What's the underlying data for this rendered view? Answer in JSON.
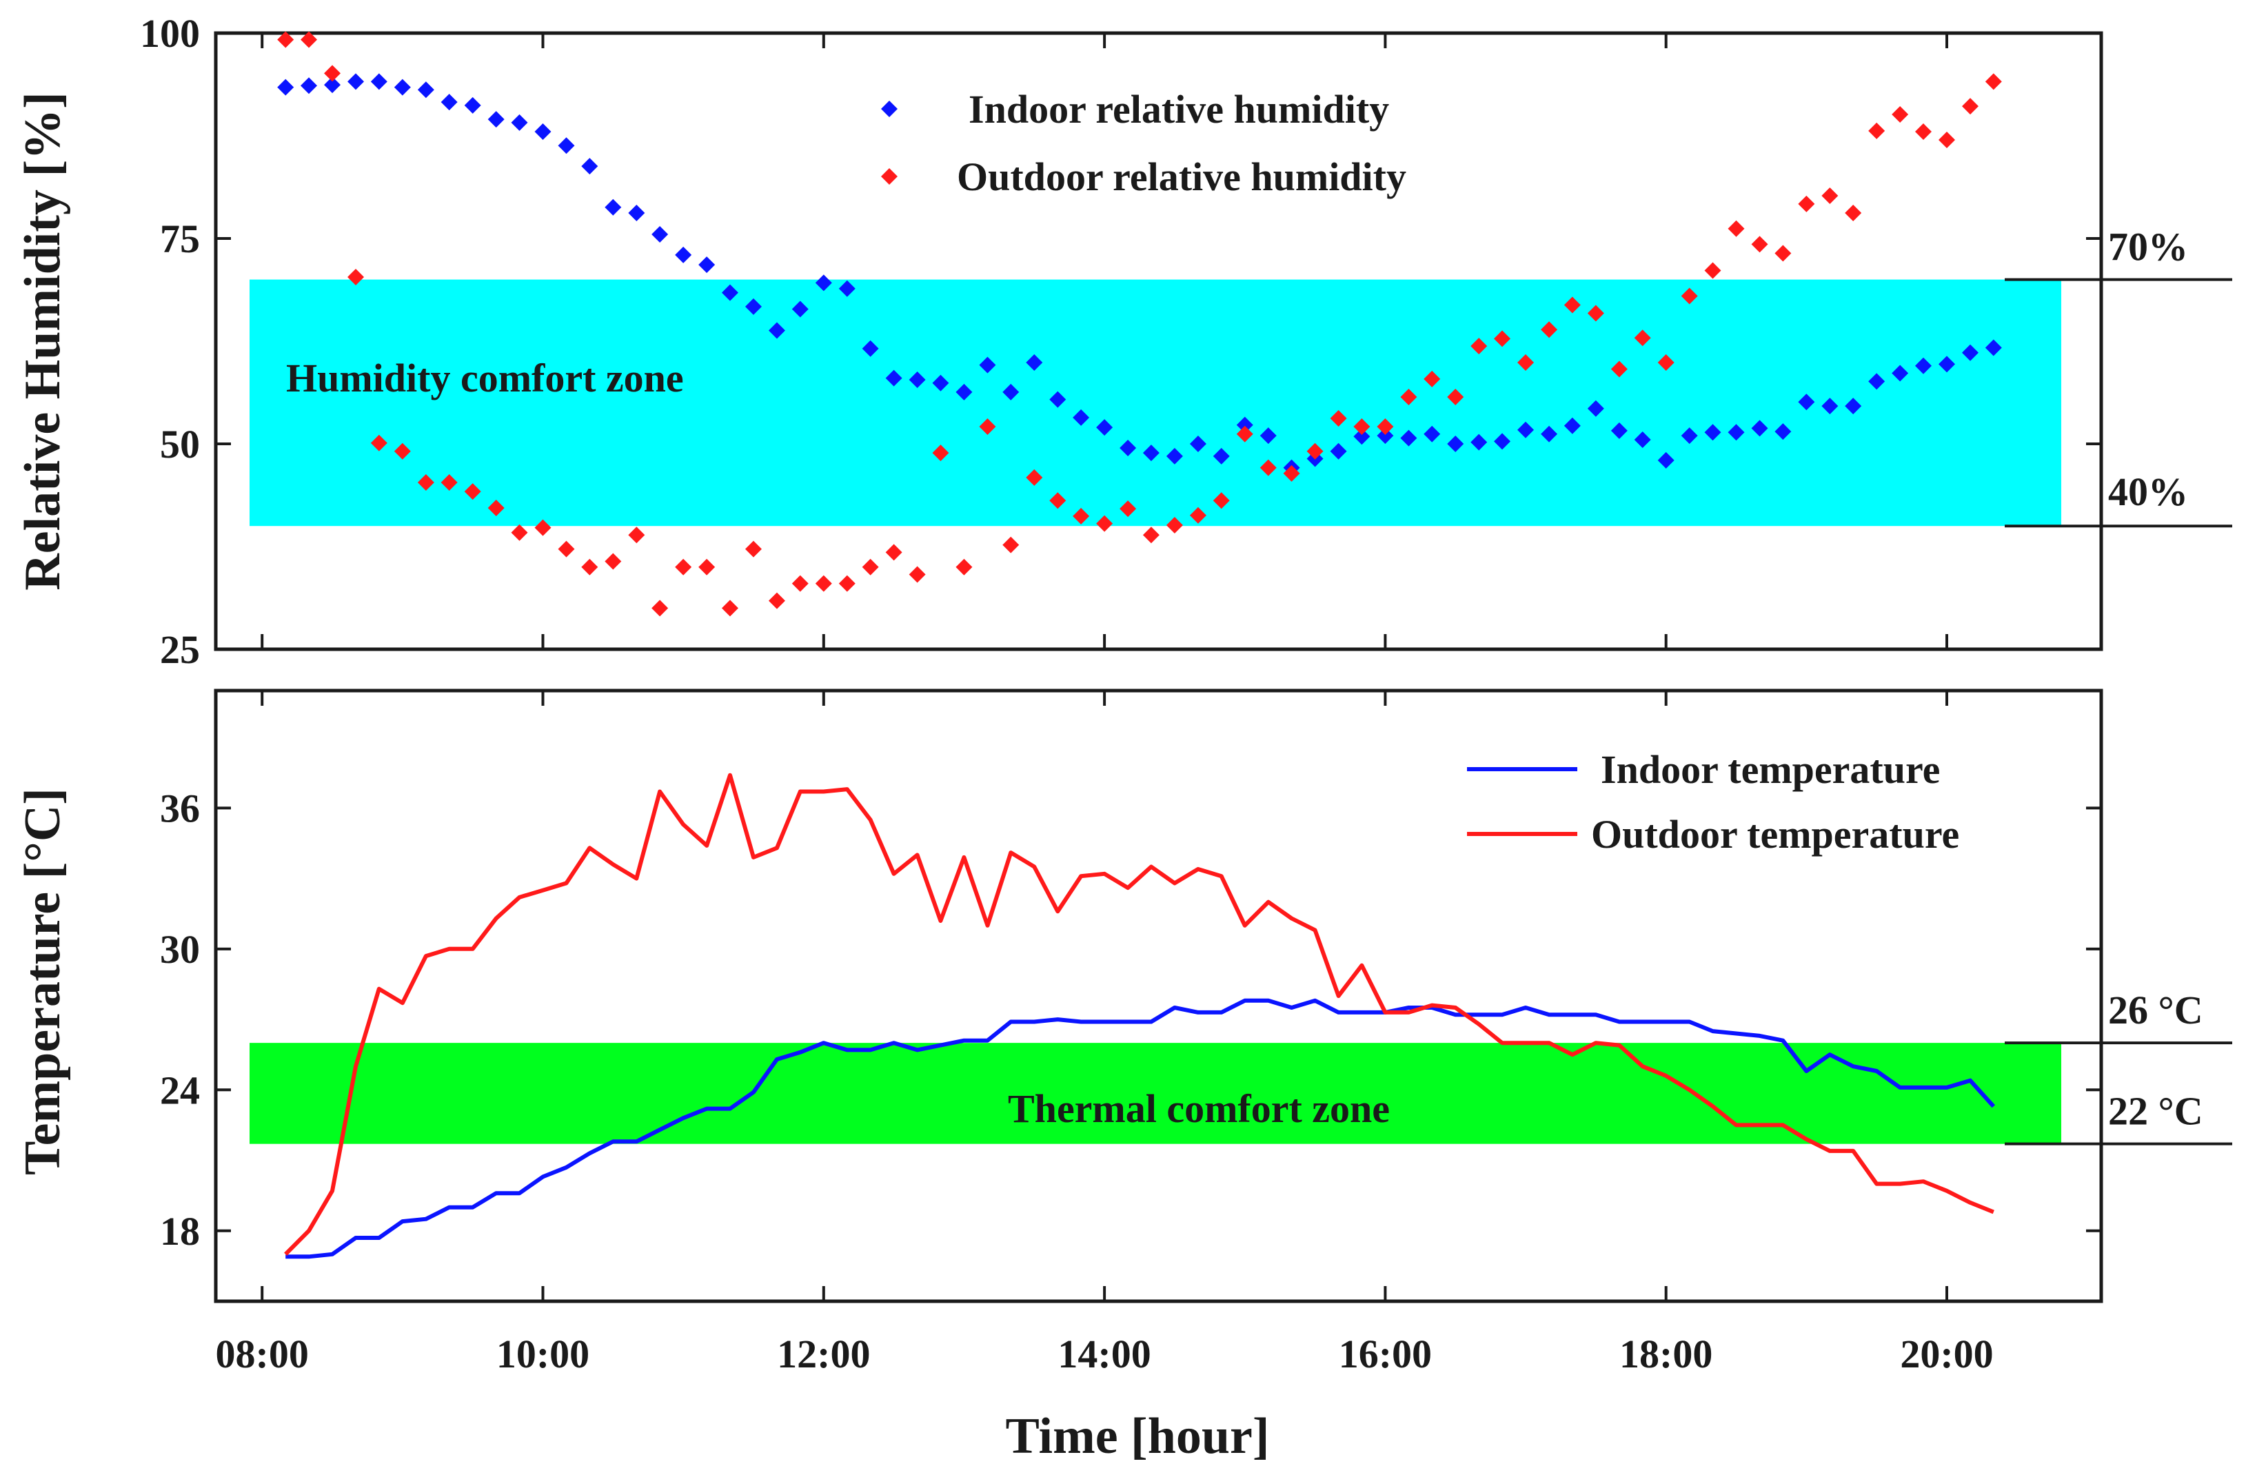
{
  "xlabel": "Time [hour]",
  "x_ticks": [
    "08:00",
    "10:00",
    "12:00",
    "14:00",
    "16:00",
    "18:00",
    "20:00"
  ],
  "colors": {
    "indoor": "#0a14ff",
    "outdoor": "#ff1a1a",
    "humidity_zone": "#00ffff",
    "thermal_zone": "#00ff1e",
    "axis": "#1a1a1a"
  },
  "chart_data": [
    {
      "type": "scatter",
      "ylabel": "Relative Humidity [%]",
      "xlim": [
        7.67,
        21.1
      ],
      "ylim": [
        25,
        100
      ],
      "y_ticks": [
        100,
        75,
        50,
        25
      ],
      "comfort_zone": {
        "label": "Humidity comfort zone",
        "lower": 40,
        "upper": 70,
        "lower_marker": "40%",
        "upper_marker": "70%"
      },
      "series": [
        {
          "name": "Indoor relative humidity",
          "x": [
            8.167,
            8.333,
            8.5,
            8.667,
            8.833,
            9.0,
            9.167,
            9.333,
            9.5,
            9.667,
            9.833,
            10.0,
            10.167,
            10.333,
            10.5,
            10.667,
            10.833,
            11.0,
            11.167,
            11.333,
            11.5,
            11.667,
            11.833,
            12.0,
            12.167,
            12.333,
            12.5,
            12.667,
            12.833,
            13.0,
            13.167,
            13.333,
            13.5,
            13.667,
            13.833,
            14.0,
            14.167,
            14.333,
            14.5,
            14.667,
            14.833,
            15.0,
            15.167,
            15.333,
            15.5,
            15.667,
            15.833,
            16.0,
            16.167,
            16.333,
            16.5,
            16.667,
            16.833,
            17.0,
            17.167,
            17.333,
            17.5,
            17.667,
            17.833,
            18.0,
            18.167,
            18.333,
            18.5,
            18.667,
            18.833,
            19.0,
            19.167,
            19.333,
            19.5,
            19.667,
            19.833,
            20.0,
            20.167,
            20.333
          ],
          "values": [
            93.4,
            93.6,
            93.7,
            94.1,
            94.1,
            93.4,
            93.1,
            91.6,
            91.2,
            89.5,
            89.1,
            88.0,
            86.3,
            83.8,
            78.8,
            78.1,
            75.5,
            73.0,
            71.8,
            68.4,
            66.7,
            63.8,
            66.4,
            69.6,
            68.9,
            61.6,
            58.0,
            57.8,
            57.4,
            56.3,
            59.6,
            56.3,
            59.9,
            55.4,
            53.2,
            52.0,
            49.5,
            48.9,
            48.5,
            50.0,
            48.5,
            52.3,
            51.0,
            47.1,
            48.2,
            49.1,
            50.9,
            51.0,
            50.7,
            51.2,
            50.0,
            50.2,
            50.3,
            51.7,
            51.2,
            52.2,
            54.3,
            51.6,
            50.5,
            48.0,
            51.0,
            51.4,
            51.4,
            51.9,
            51.5,
            55.1,
            54.6,
            54.6,
            57.6,
            58.6,
            59.5,
            59.7,
            61.1,
            61.7
          ]
        },
        {
          "name": "Outdoor relative humidity",
          "x": [
            8.167,
            8.333,
            8.5,
            8.667,
            8.833,
            9.0,
            9.167,
            9.333,
            9.5,
            9.667,
            9.833,
            10.0,
            10.167,
            10.333,
            10.5,
            10.667,
            10.833,
            11.0,
            11.167,
            11.333,
            11.5,
            11.667,
            11.833,
            12.0,
            12.167,
            12.333,
            12.5,
            12.667,
            12.833,
            13.0,
            13.167,
            13.333,
            13.5,
            13.667,
            13.833,
            14.0,
            14.167,
            14.333,
            14.5,
            14.667,
            14.833,
            15.0,
            15.167,
            15.333,
            15.5,
            15.667,
            15.833,
            16.0,
            16.167,
            16.333,
            16.5,
            16.667,
            16.833,
            17.0,
            17.167,
            17.333,
            17.5,
            17.667,
            17.833,
            18.0,
            18.167,
            18.333,
            18.5,
            18.667,
            18.833,
            19.0,
            19.167,
            19.333,
            19.5,
            19.667,
            19.833,
            20.0,
            20.167,
            20.333
          ],
          "values": [
            99.2,
            99.2,
            95.1,
            70.3,
            50.1,
            49.1,
            45.3,
            45.3,
            44.2,
            42.2,
            39.2,
            39.8,
            37.2,
            35.0,
            35.7,
            38.9,
            30.0,
            35.0,
            35.0,
            30.0,
            37.2,
            30.9,
            33.0,
            33.0,
            33.0,
            35.0,
            36.8,
            34.1,
            48.9,
            35.0,
            52.1,
            37.7,
            45.9,
            43.1,
            41.2,
            40.3,
            42.1,
            38.9,
            40.1,
            41.3,
            43.1,
            51.2,
            47.1,
            46.4,
            49.1,
            53.1,
            52.1,
            52.1,
            55.7,
            57.9,
            55.7,
            61.9,
            62.8,
            59.9,
            63.9,
            66.9,
            65.9,
            59.1,
            62.9,
            59.9,
            68.0,
            71.1,
            76.2,
            74.3,
            73.2,
            79.2,
            80.2,
            78.1,
            88.1,
            90.1,
            88.0,
            87.0,
            91.1,
            94.1
          ]
        }
      ]
    },
    {
      "type": "line",
      "ylabel": "Temperature [°C]",
      "xlim": [
        7.67,
        21.1
      ],
      "ylim": [
        15,
        41
      ],
      "y_ticks": [
        36,
        30,
        24,
        18
      ],
      "comfort_zone": {
        "label": "Thermal comfort zone",
        "lower": 21.7,
        "upper": 26.0,
        "lower_marker": "22 °C",
        "upper_marker": "26 °C"
      },
      "series": [
        {
          "name": "Indoor temperature",
          "x": [
            8.167,
            8.333,
            8.5,
            8.667,
            8.833,
            9.0,
            9.167,
            9.333,
            9.5,
            9.667,
            9.833,
            10.0,
            10.167,
            10.333,
            10.5,
            10.667,
            10.833,
            11.0,
            11.167,
            11.333,
            11.5,
            11.667,
            11.833,
            12.0,
            12.167,
            12.333,
            12.5,
            12.667,
            12.833,
            13.0,
            13.167,
            13.333,
            13.5,
            13.667,
            13.833,
            14.0,
            14.167,
            14.333,
            14.5,
            14.667,
            14.833,
            15.0,
            15.167,
            15.333,
            15.5,
            15.667,
            15.833,
            16.0,
            16.167,
            16.333,
            16.5,
            16.667,
            16.833,
            17.0,
            17.167,
            17.333,
            17.5,
            17.667,
            17.833,
            18.0,
            18.167,
            18.333,
            18.5,
            18.667,
            18.833,
            19.0,
            19.167,
            19.333,
            19.5,
            19.667,
            19.833,
            20.0,
            20.167,
            20.333
          ],
          "values": [
            16.9,
            16.9,
            17.0,
            17.7,
            17.7,
            18.4,
            18.5,
            19.0,
            19.0,
            19.6,
            19.6,
            20.3,
            20.7,
            21.3,
            21.8,
            21.8,
            22.3,
            22.8,
            23.2,
            23.2,
            23.9,
            25.3,
            25.6,
            26.0,
            25.7,
            25.7,
            26.0,
            25.7,
            25.9,
            26.1,
            26.1,
            26.9,
            26.9,
            27.0,
            26.9,
            26.9,
            26.9,
            26.9,
            27.5,
            27.3,
            27.3,
            27.8,
            27.8,
            27.5,
            27.8,
            27.3,
            27.3,
            27.3,
            27.5,
            27.5,
            27.2,
            27.2,
            27.2,
            27.5,
            27.2,
            27.2,
            27.2,
            26.9,
            26.9,
            26.9,
            26.9,
            26.5,
            26.4,
            26.3,
            26.1,
            24.8,
            25.5,
            25.0,
            24.8,
            24.1,
            24.1,
            24.1,
            24.4,
            23.3
          ]
        },
        {
          "name": "Outdoor temperature",
          "x": [
            8.167,
            8.333,
            8.5,
            8.667,
            8.833,
            9.0,
            9.167,
            9.333,
            9.5,
            9.667,
            9.833,
            10.0,
            10.167,
            10.333,
            10.5,
            10.667,
            10.833,
            11.0,
            11.167,
            11.333,
            11.5,
            11.667,
            11.833,
            12.0,
            12.167,
            12.333,
            12.5,
            12.667,
            12.833,
            13.0,
            13.167,
            13.333,
            13.5,
            13.667,
            13.833,
            14.0,
            14.167,
            14.333,
            14.5,
            14.667,
            14.833,
            15.0,
            15.167,
            15.333,
            15.5,
            15.667,
            15.833,
            16.0,
            16.167,
            16.333,
            16.5,
            16.667,
            16.833,
            17.0,
            17.167,
            17.333,
            17.5,
            17.667,
            17.833,
            18.0,
            18.167,
            18.333,
            18.5,
            18.667,
            18.833,
            19.0,
            19.167,
            19.333,
            19.5,
            19.667,
            19.833,
            20.0,
            20.167,
            20.333
          ],
          "values": [
            17.0,
            18.0,
            19.7,
            25.0,
            28.3,
            27.7,
            29.7,
            30.0,
            30.0,
            31.3,
            32.2,
            32.5,
            32.8,
            34.3,
            33.6,
            33.0,
            36.7,
            35.3,
            34.4,
            37.4,
            33.9,
            34.3,
            36.7,
            36.7,
            36.8,
            35.5,
            33.2,
            34.0,
            31.2,
            33.9,
            31.0,
            34.1,
            33.5,
            31.6,
            33.1,
            33.2,
            32.6,
            33.5,
            32.8,
            33.4,
            33.1,
            31.0,
            32.0,
            31.3,
            30.8,
            28.0,
            29.3,
            27.3,
            27.3,
            27.6,
            27.5,
            26.8,
            26.0,
            26.0,
            26.0,
            25.5,
            26.0,
            25.9,
            25.0,
            24.6,
            24.0,
            23.3,
            22.5,
            22.5,
            22.5,
            21.9,
            21.4,
            21.4,
            20.0,
            20.0,
            20.1,
            19.7,
            19.2,
            18.8
          ]
        }
      ]
    }
  ]
}
